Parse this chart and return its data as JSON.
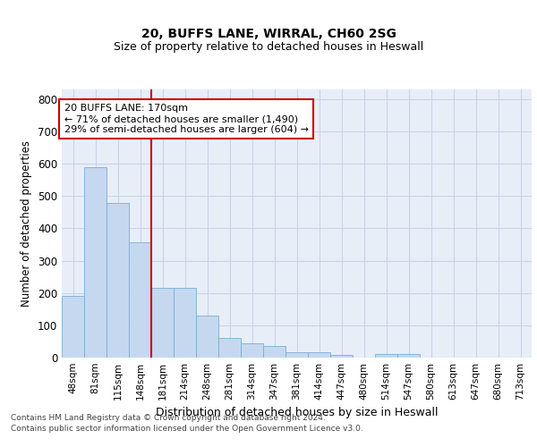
{
  "title1": "20, BUFFS LANE, WIRRAL, CH60 2SG",
  "title2": "Size of property relative to detached houses in Heswall",
  "xlabel": "Distribution of detached houses by size in Heswall",
  "ylabel": "Number of detached properties",
  "categories": [
    "48sqm",
    "81sqm",
    "115sqm",
    "148sqm",
    "181sqm",
    "214sqm",
    "248sqm",
    "281sqm",
    "314sqm",
    "347sqm",
    "381sqm",
    "414sqm",
    "447sqm",
    "480sqm",
    "514sqm",
    "547sqm",
    "580sqm",
    "613sqm",
    "647sqm",
    "680sqm",
    "713sqm"
  ],
  "values": [
    192,
    588,
    480,
    356,
    215,
    215,
    130,
    62,
    43,
    36,
    17,
    17,
    8,
    0,
    11,
    11,
    0,
    0,
    0,
    0,
    0
  ],
  "bar_color": "#c5d8f0",
  "bar_edge_color": "#7aadd4",
  "grid_color": "#c8d4e8",
  "background_color": "#e8eef8",
  "vline_x_index": 4,
  "vline_color": "#cc0000",
  "annotation_text": "20 BUFFS LANE: 170sqm\n← 71% of detached houses are smaller (1,490)\n29% of semi-detached houses are larger (604) →",
  "annotation_box_facecolor": "#ffffff",
  "annotation_box_edgecolor": "#cc0000",
  "ylim": [
    0,
    830
  ],
  "yticks": [
    0,
    100,
    200,
    300,
    400,
    500,
    600,
    700,
    800
  ],
  "footer1": "Contains HM Land Registry data © Crown copyright and database right 2024.",
  "footer2": "Contains public sector information licensed under the Open Government Licence v3.0."
}
